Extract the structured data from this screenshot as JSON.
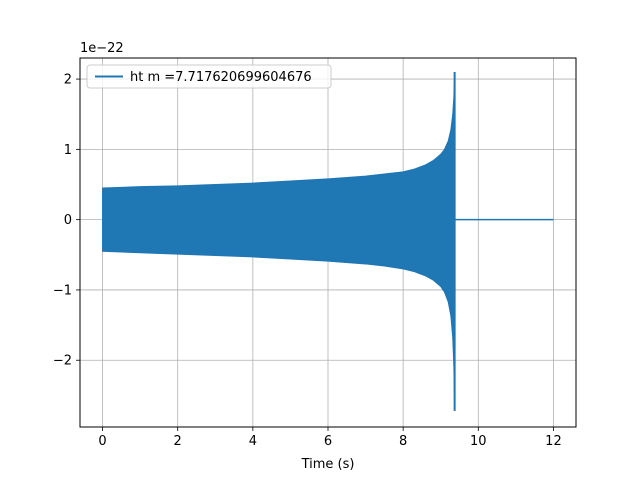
{
  "chart_data": {
    "type": "line",
    "title": "",
    "xlabel": "Time (s)",
    "ylabel": "",
    "y_offset_label": "1e−22",
    "xlim": [
      -0.6,
      12.6
    ],
    "ylim": [
      -2.95,
      2.3
    ],
    "x_ticks": [
      0,
      2,
      4,
      6,
      8,
      10,
      12
    ],
    "x_tick_labels": [
      "0",
      "2",
      "4",
      "6",
      "8",
      "10",
      "12"
    ],
    "y_ticks": [
      -2,
      -1,
      0,
      1,
      2
    ],
    "y_tick_labels": [
      "−2",
      "−1",
      "0",
      "1",
      "2"
    ],
    "grid": true,
    "legend_position": "upper-left",
    "series": [
      {
        "name": "ht m =7.717620699604676",
        "color": "#1f77b4",
        "envelope": {
          "x": [
            0,
            1,
            2,
            3,
            4,
            5,
            6,
            7,
            7.5,
            8,
            8.3,
            8.6,
            8.8,
            9.0,
            9.1,
            9.2,
            9.27,
            9.32,
            9.35,
            9.37
          ],
          "upper": [
            0.45,
            0.47,
            0.48,
            0.5,
            0.52,
            0.55,
            0.58,
            0.62,
            0.65,
            0.68,
            0.72,
            0.78,
            0.84,
            0.93,
            1.0,
            1.12,
            1.28,
            1.5,
            1.75,
            2.1
          ],
          "lower": [
            -0.45,
            -0.47,
            -0.49,
            -0.51,
            -0.53,
            -0.56,
            -0.59,
            -0.63,
            -0.66,
            -0.7,
            -0.74,
            -0.8,
            -0.86,
            -0.95,
            -1.03,
            -1.17,
            -1.37,
            -1.68,
            -2.1,
            -2.72
          ]
        },
        "tail": {
          "x": [
            9.37,
            12
          ],
          "y": [
            0,
            0
          ]
        }
      }
    ]
  }
}
